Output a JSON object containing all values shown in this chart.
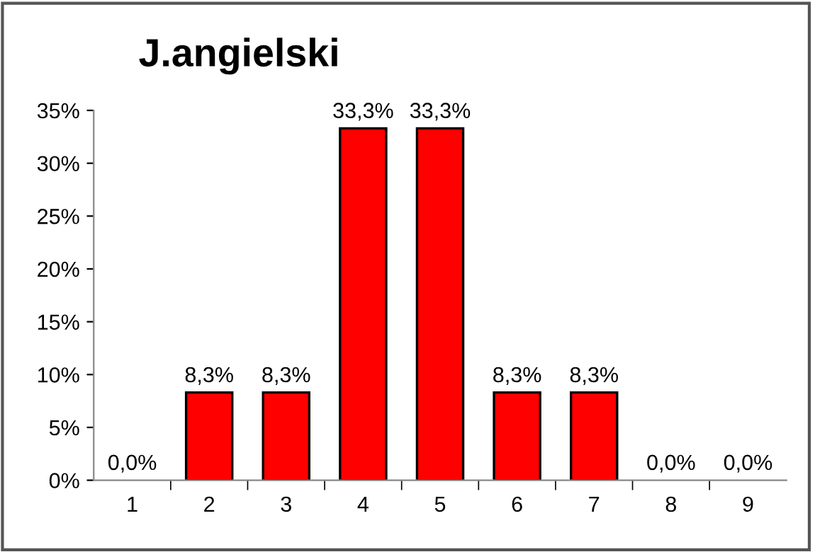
{
  "chart_data": {
    "type": "bar",
    "title": "J.angielski",
    "categories": [
      "1",
      "2",
      "3",
      "4",
      "5",
      "6",
      "7",
      "8",
      "9"
    ],
    "values": [
      0,
      8.3,
      8.3,
      33.3,
      33.3,
      8.3,
      8.3,
      0,
      0
    ],
    "value_labels": [
      "0,0%",
      "8,3%",
      "8,3%",
      "33,3%",
      "33,3%",
      "8,3%",
      "8,3%",
      "0,0%",
      "0,0%"
    ],
    "color": "#ff0000",
    "ylim": [
      0,
      35
    ],
    "yticks": [
      {
        "value": 0,
        "label": "0%"
      },
      {
        "value": 5,
        "label": "5%"
      },
      {
        "value": 10,
        "label": "10%"
      },
      {
        "value": 15,
        "label": "15%"
      },
      {
        "value": 20,
        "label": "20%"
      },
      {
        "value": 25,
        "label": "25%"
      },
      {
        "value": 30,
        "label": "30%"
      },
      {
        "value": 35,
        "label": "35%"
      }
    ],
    "grid": false
  }
}
